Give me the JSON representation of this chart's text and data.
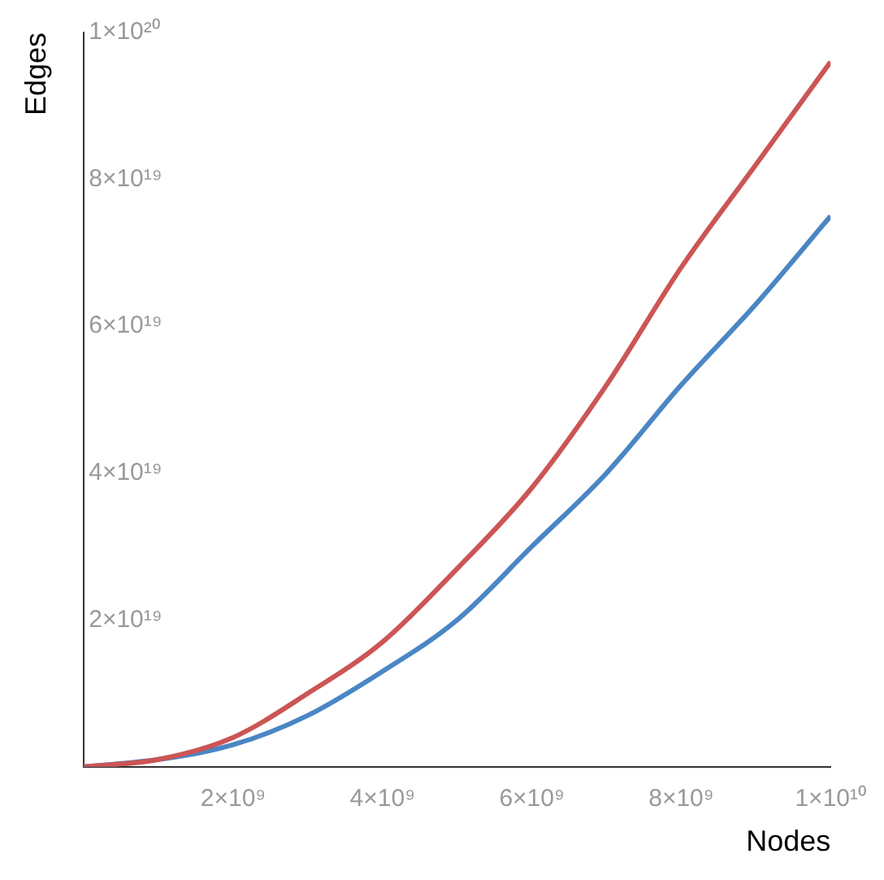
{
  "chart_data": {
    "type": "line",
    "xlabel": "Nodes",
    "ylabel": "Edges",
    "x": [
      0,
      1000000000.0,
      2000000000.0,
      3000000000.0,
      4000000000.0,
      5000000000.0,
      6000000000.0,
      7000000000.0,
      8000000000.0,
      9000000000.0,
      10000000000.0
    ],
    "series": [
      {
        "color": "#cc5555",
        "values": [
          0,
          1e+18,
          4e+18,
          1e+19,
          1.7e+19,
          2.7e+19,
          3.8e+19,
          5.2e+19,
          6.8e+19,
          8.2e+19,
          9.6e+19
        ]
      },
      {
        "color": "#4a86c5",
        "values": [
          0,
          1e+18,
          3e+18,
          7e+18,
          1.3e+19,
          2e+19,
          3e+19,
          4e+19,
          5.2e+19,
          6.3e+19,
          7.5e+19
        ]
      }
    ],
    "xlim": [
      0,
      10000000000.0
    ],
    "ylim": [
      0,
      1e+20
    ],
    "xticks": [
      {
        "value": 2000000000.0,
        "label": "2×10⁹"
      },
      {
        "value": 4000000000.0,
        "label": "4×10⁹"
      },
      {
        "value": 6000000000.0,
        "label": "6×10⁹"
      },
      {
        "value": 8000000000.0,
        "label": "8×10⁹"
      },
      {
        "value": 10000000000.0,
        "label": "1×10¹⁰"
      }
    ],
    "yticks": [
      {
        "value": 2e+19,
        "label": "2×10¹⁹"
      },
      {
        "value": 4e+19,
        "label": "4×10¹⁹"
      },
      {
        "value": 6e+19,
        "label": "6×10¹⁹"
      },
      {
        "value": 8e+19,
        "label": "8×10¹⁹"
      },
      {
        "value": 1e+20,
        "label": "1×10²⁰"
      }
    ],
    "grid": false,
    "legend": false,
    "marker": "none",
    "line_style": "solid"
  }
}
